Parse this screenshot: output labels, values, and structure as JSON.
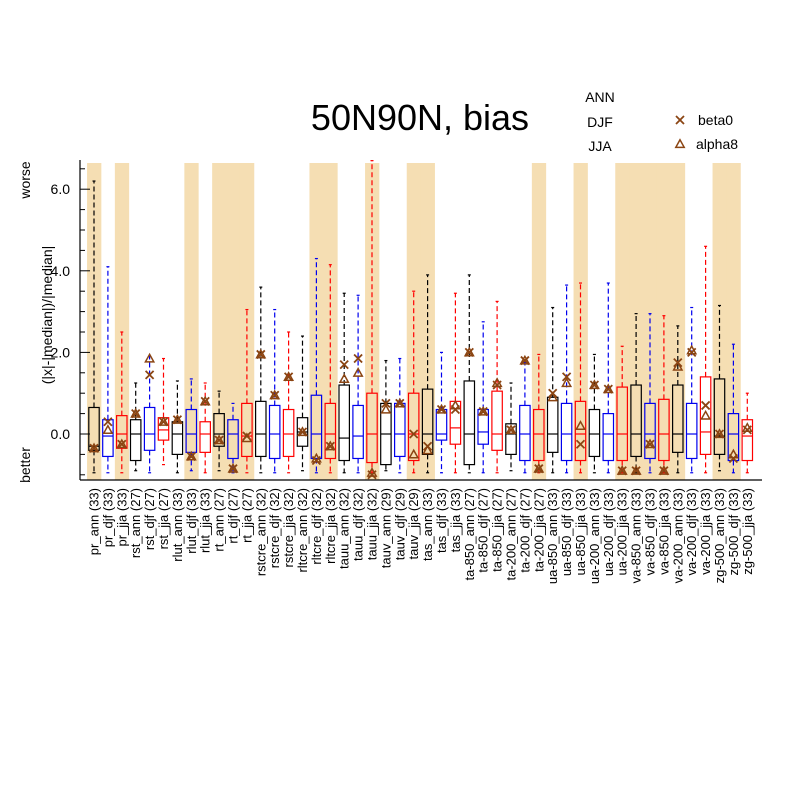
{
  "chart_data": {
    "type": "box",
    "title": "50N90N, bias",
    "ylabel": "(|x|-|median|)/|median|",
    "y_top_label": "worse",
    "y_bottom_label": "better",
    "ylim": [
      -1.05,
      6.8
    ],
    "yticks": [
      0.0,
      2.0,
      4.0,
      6.0
    ],
    "ytick_labels": [
      "0.0",
      "2.0",
      "4.0",
      "6.0"
    ],
    "season_legend": [
      {
        "label": "ANN",
        "color": "#000000"
      },
      {
        "label": "DJF",
        "color": "#0000ee"
      },
      {
        "label": "JJA",
        "color": "#ff0000"
      }
    ],
    "marker_legend": [
      {
        "label": "beta0",
        "marker": "x",
        "color": "#8b4513"
      },
      {
        "label": "alpha8",
        "marker": "triangle",
        "color": "#8b4513"
      }
    ],
    "shade_color": "#f5deb3",
    "categories": [
      {
        "label": "pr_ann (33)",
        "season": "ANN",
        "shade": true,
        "lo": -0.95,
        "q1": -0.4,
        "med": -0.3,
        "q3": 0.65,
        "hi": 6.2,
        "beta0": -0.35,
        "alpha8": -0.35
      },
      {
        "label": "pr_djf (33)",
        "season": "DJF",
        "shade": false,
        "lo": -0.95,
        "q1": -0.55,
        "med": -0.05,
        "q3": 0.35,
        "hi": 4.1,
        "beta0": 0.3,
        "alpha8": 0.1
      },
      {
        "label": "pr_jja (33)",
        "season": "JJA",
        "shade": true,
        "lo": -0.95,
        "q1": -0.35,
        "med": 0.0,
        "q3": 0.45,
        "hi": 2.5,
        "beta0": -0.25,
        "alpha8": -0.25
      },
      {
        "label": "rst_ann (27)",
        "season": "ANN",
        "shade": false,
        "lo": -0.9,
        "q1": -0.65,
        "med": 0.0,
        "q3": 0.35,
        "hi": 1.25,
        "beta0": 0.5,
        "alpha8": 0.5
      },
      {
        "label": "rst_djf (27)",
        "season": "DJF",
        "shade": false,
        "lo": -0.95,
        "q1": -0.4,
        "med": 0.0,
        "q3": 0.65,
        "hi": 1.9,
        "beta0": 1.45,
        "alpha8": 1.85
      },
      {
        "label": "rst_jja (27)",
        "season": "JJA",
        "shade": false,
        "lo": -0.75,
        "q1": -0.15,
        "med": 0.1,
        "q3": 0.4,
        "hi": 1.85,
        "beta0": 0.3,
        "alpha8": 0.3
      },
      {
        "label": "rlut_ann (33)",
        "season": "ANN",
        "shade": false,
        "lo": -0.95,
        "q1": -0.5,
        "med": 0.0,
        "q3": 0.3,
        "hi": 1.3,
        "beta0": 0.35,
        "alpha8": 0.35
      },
      {
        "label": "rlut_djf (33)",
        "season": "DJF",
        "shade": true,
        "lo": -0.9,
        "q1": -0.45,
        "med": 0.0,
        "q3": 0.6,
        "hi": 1.35,
        "beta0": -0.55,
        "alpha8": -0.55
      },
      {
        "label": "rlut_jja (33)",
        "season": "JJA",
        "shade": false,
        "lo": -0.95,
        "q1": -0.45,
        "med": 0.0,
        "q3": 0.3,
        "hi": 1.25,
        "beta0": 0.8,
        "alpha8": 0.8
      },
      {
        "label": "rt_ann (27)",
        "season": "ANN",
        "shade": true,
        "lo": -0.9,
        "q1": -0.3,
        "med": 0.0,
        "q3": 0.5,
        "hi": 1.05,
        "beta0": -0.15,
        "alpha8": -0.15
      },
      {
        "label": "rt_djf (27)",
        "season": "DJF",
        "shade": true,
        "lo": -0.95,
        "q1": -0.6,
        "med": 0.0,
        "q3": 0.35,
        "hi": 0.75,
        "beta0": -0.85,
        "alpha8": -0.85
      },
      {
        "label": "rt_jja (27)",
        "season": "JJA",
        "shade": true,
        "lo": -0.95,
        "q1": -0.55,
        "med": -0.05,
        "q3": 0.75,
        "hi": 3.05,
        "beta0": -0.05,
        "alpha8": -0.1
      },
      {
        "label": "rstcre_ann (32)",
        "season": "ANN",
        "shade": false,
        "lo": -0.95,
        "q1": -0.55,
        "med": 0.0,
        "q3": 0.8,
        "hi": 3.6,
        "beta0": 1.95,
        "alpha8": 1.95
      },
      {
        "label": "rstcre_djf (32)",
        "season": "DJF",
        "shade": false,
        "lo": -0.95,
        "q1": -0.6,
        "med": 0.0,
        "q3": 0.7,
        "hi": 3.05,
        "beta0": 0.95,
        "alpha8": 0.95
      },
      {
        "label": "rstcre_jja (32)",
        "season": "JJA",
        "shade": false,
        "lo": -0.95,
        "q1": -0.55,
        "med": 0.0,
        "q3": 0.6,
        "hi": 2.5,
        "beta0": 1.4,
        "alpha8": 1.4
      },
      {
        "label": "rltcre_ann (32)",
        "season": "ANN",
        "shade": false,
        "lo": -0.9,
        "q1": -0.3,
        "med": 0.05,
        "q3": 0.4,
        "hi": 2.4,
        "beta0": 0.05,
        "alpha8": 0.05
      },
      {
        "label": "rltcre_djf (32)",
        "season": "DJF",
        "shade": true,
        "lo": -0.95,
        "q1": -0.6,
        "med": 0.0,
        "q3": 0.95,
        "hi": 4.3,
        "beta0": -0.65,
        "alpha8": -0.6
      },
      {
        "label": "rltcre_jja (32)",
        "season": "JJA",
        "shade": true,
        "lo": -0.95,
        "q1": -0.6,
        "med": 0.0,
        "q3": 0.75,
        "hi": 4.15,
        "beta0": -0.3,
        "alpha8": -0.3
      },
      {
        "label": "tauu_ann (32)",
        "season": "ANN",
        "shade": false,
        "lo": -0.95,
        "q1": -0.65,
        "med": -0.1,
        "q3": 1.2,
        "hi": 3.45,
        "beta0": 1.7,
        "alpha8": 1.35
      },
      {
        "label": "tauu_djf (32)",
        "season": "DJF",
        "shade": false,
        "lo": -0.95,
        "q1": -0.6,
        "med": -0.05,
        "q3": 0.7,
        "hi": 3.4,
        "beta0": 1.85,
        "alpha8": 1.5
      },
      {
        "label": "tauu_jja (32)",
        "season": "JJA",
        "shade": true,
        "lo": -0.95,
        "q1": -0.7,
        "med": 0.0,
        "q3": 1.0,
        "hi": 6.7,
        "beta0": -1.0,
        "alpha8": -0.95
      },
      {
        "label": "tauv_ann (29)",
        "season": "ANN",
        "shade": false,
        "lo": -0.9,
        "q1": -0.75,
        "med": 0.0,
        "q3": 0.75,
        "hi": 1.8,
        "beta0": 0.75,
        "alpha8": 0.6
      },
      {
        "label": "tauv_djf (29)",
        "season": "DJF",
        "shade": false,
        "lo": -0.95,
        "q1": -0.55,
        "med": 0.0,
        "q3": 0.75,
        "hi": 1.85,
        "beta0": 0.75,
        "alpha8": 0.75
      },
      {
        "label": "tauv_jja (29)",
        "season": "JJA",
        "shade": true,
        "lo": -0.95,
        "q1": -0.65,
        "med": 0.0,
        "q3": 1.0,
        "hi": 3.5,
        "beta0": 0.0,
        "alpha8": -0.5
      },
      {
        "label": "tas_ann (33)",
        "season": "ANN",
        "shade": true,
        "lo": -0.95,
        "q1": -0.5,
        "med": 0.0,
        "q3": 1.1,
        "hi": 3.9,
        "beta0": -0.3,
        "alpha8": -0.4
      },
      {
        "label": "tas_djf (33)",
        "season": "DJF",
        "shade": false,
        "lo": -0.95,
        "q1": -0.15,
        "med": 0.0,
        "q3": 0.6,
        "hi": 2.0,
        "beta0": 0.6,
        "alpha8": 0.6
      },
      {
        "label": "tas_jja (33)",
        "season": "JJA",
        "shade": false,
        "lo": -0.95,
        "q1": -0.25,
        "med": 0.15,
        "q3": 0.8,
        "hi": 3.45,
        "beta0": 0.6,
        "alpha8": 0.7
      },
      {
        "label": "ta-850_ann (27)",
        "season": "ANN",
        "shade": false,
        "lo": -0.95,
        "q1": -0.75,
        "med": 0.0,
        "q3": 1.3,
        "hi": 3.9,
        "beta0": 2.0,
        "alpha8": 2.0
      },
      {
        "label": "ta-850_djf (27)",
        "season": "DJF",
        "shade": false,
        "lo": -0.95,
        "q1": -0.25,
        "med": 0.05,
        "q3": 0.6,
        "hi": 2.75,
        "beta0": 0.55,
        "alpha8": 0.55
      },
      {
        "label": "ta-850_jja (27)",
        "season": "JJA",
        "shade": false,
        "lo": -0.95,
        "q1": -0.4,
        "med": 0.0,
        "q3": 1.05,
        "hi": 3.25,
        "beta0": 1.2,
        "alpha8": 1.25
      },
      {
        "label": "ta-200_ann (27)",
        "season": "ANN",
        "shade": false,
        "lo": -0.9,
        "q1": -0.5,
        "med": 0.0,
        "q3": 0.25,
        "hi": 1.25,
        "beta0": 0.1,
        "alpha8": 0.1
      },
      {
        "label": "ta-200_djf (27)",
        "season": "DJF",
        "shade": false,
        "lo": -0.95,
        "q1": -0.65,
        "med": 0.0,
        "q3": 0.7,
        "hi": 1.75,
        "beta0": 1.8,
        "alpha8": 1.8
      },
      {
        "label": "ta-200_jja (27)",
        "season": "JJA",
        "shade": true,
        "lo": -0.95,
        "q1": -0.65,
        "med": 0.0,
        "q3": 0.6,
        "hi": 1.95,
        "beta0": -0.85,
        "alpha8": -0.85
      },
      {
        "label": "ua-850_ann (33)",
        "season": "ANN",
        "shade": false,
        "lo": -0.95,
        "q1": -0.45,
        "med": 0.0,
        "q3": 0.9,
        "hi": 3.1,
        "beta0": 1.0,
        "alpha8": 0.9
      },
      {
        "label": "ua-850_djf (33)",
        "season": "DJF",
        "shade": false,
        "lo": -0.95,
        "q1": -0.65,
        "med": 0.0,
        "q3": 0.75,
        "hi": 3.65,
        "beta0": 1.4,
        "alpha8": 1.25
      },
      {
        "label": "ua-850_jja (33)",
        "season": "JJA",
        "shade": true,
        "lo": -0.95,
        "q1": -0.65,
        "med": 0.0,
        "q3": 0.8,
        "hi": 3.7,
        "beta0": -0.25,
        "alpha8": 0.2
      },
      {
        "label": "ua-200_ann (33)",
        "season": "ANN",
        "shade": false,
        "lo": -0.95,
        "q1": -0.55,
        "med": 0.0,
        "q3": 0.6,
        "hi": 1.95,
        "beta0": 1.2,
        "alpha8": 1.2
      },
      {
        "label": "ua-200_djf (33)",
        "season": "DJF",
        "shade": false,
        "lo": -0.95,
        "q1": -0.65,
        "med": 0.0,
        "q3": 0.5,
        "hi": 3.7,
        "beta0": 1.1,
        "alpha8": 1.1
      },
      {
        "label": "ua-200_jja (33)",
        "season": "JJA",
        "shade": true,
        "lo": -0.95,
        "q1": -0.65,
        "med": 0.0,
        "q3": 1.15,
        "hi": 2.15,
        "beta0": -0.9,
        "alpha8": -0.9
      },
      {
        "label": "va-850_ann (33)",
        "season": "ANN",
        "shade": true,
        "lo": -0.95,
        "q1": -0.55,
        "med": 0.0,
        "q3": 1.2,
        "hi": 2.95,
        "beta0": -0.9,
        "alpha8": -0.9
      },
      {
        "label": "va-850_djf (33)",
        "season": "DJF",
        "shade": true,
        "lo": -0.95,
        "q1": -0.6,
        "med": 0.0,
        "q3": 0.75,
        "hi": 2.95,
        "beta0": -0.25,
        "alpha8": -0.25
      },
      {
        "label": "va-850_jja (33)",
        "season": "JJA",
        "shade": true,
        "lo": -0.95,
        "q1": -0.65,
        "med": 0.0,
        "q3": 0.85,
        "hi": 2.9,
        "beta0": -0.9,
        "alpha8": -0.9
      },
      {
        "label": "va-200_ann (33)",
        "season": "ANN",
        "shade": true,
        "lo": -0.95,
        "q1": -0.45,
        "med": 0.0,
        "q3": 1.2,
        "hi": 2.65,
        "beta0": 1.75,
        "alpha8": 1.65
      },
      {
        "label": "va-200_djf (33)",
        "season": "DJF",
        "shade": false,
        "lo": -0.95,
        "q1": -0.6,
        "med": 0.0,
        "q3": 0.75,
        "hi": 3.1,
        "beta0": 2.0,
        "alpha8": 2.05
      },
      {
        "label": "va-200_jja (33)",
        "season": "JJA",
        "shade": false,
        "lo": -0.95,
        "q1": -0.5,
        "med": 0.05,
        "q3": 1.4,
        "hi": 4.6,
        "beta0": 0.7,
        "alpha8": 0.45
      },
      {
        "label": "zg-500_ann (33)",
        "season": "ANN",
        "shade": true,
        "lo": -0.9,
        "q1": -0.5,
        "med": -0.05,
        "q3": 1.35,
        "hi": 3.15,
        "beta0": 0.0,
        "alpha8": 0.0
      },
      {
        "label": "zg-500_djf (33)",
        "season": "DJF",
        "shade": true,
        "lo": -0.95,
        "q1": -0.65,
        "med": 0.0,
        "q3": 0.5,
        "hi": 2.2,
        "beta0": -0.6,
        "alpha8": -0.5
      },
      {
        "label": "zg-500_jja (33)",
        "season": "JJA",
        "shade": false,
        "lo": -0.95,
        "q1": -0.65,
        "med": -0.05,
        "q3": 0.35,
        "hi": 1.0,
        "beta0": 0.1,
        "alpha8": 0.15
      }
    ]
  }
}
